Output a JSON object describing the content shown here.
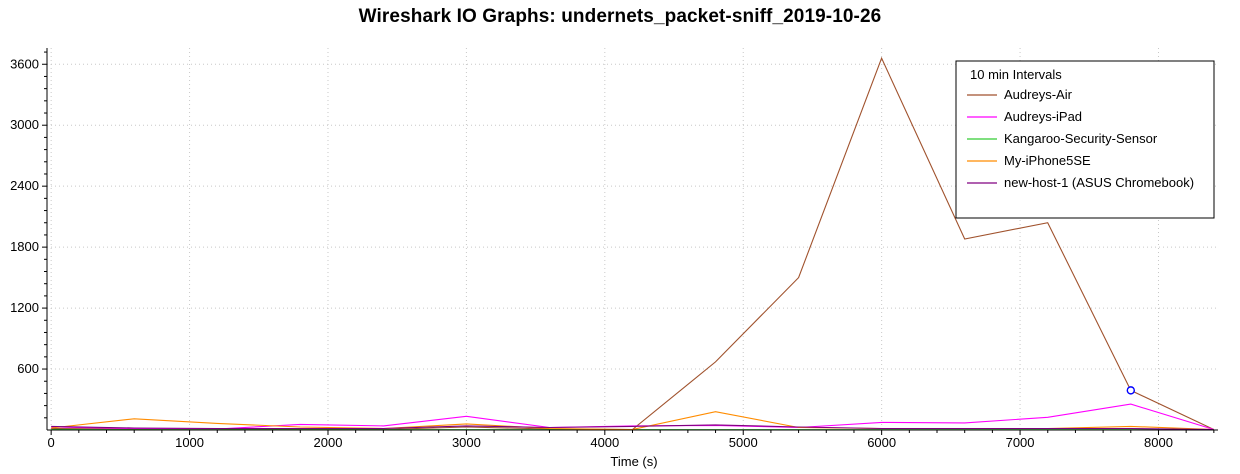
{
  "chart_data": {
    "type": "line",
    "title": "Wireshark IO Graphs: undernets_packet-sniff_2019-10-26",
    "xlabel": "Time (s)",
    "ylabel": "",
    "xlim": [
      -30,
      8430
    ],
    "ylim": [
      0,
      3760
    ],
    "xticks": [
      0,
      1000,
      2000,
      3000,
      4000,
      5000,
      6000,
      7000,
      8000
    ],
    "yticks": [
      600,
      1200,
      1800,
      2400,
      3000,
      3600
    ],
    "grid": true,
    "legend": {
      "title": "10 min Intervals",
      "placement": "top-right"
    },
    "x": [
      0,
      600,
      1200,
      1800,
      2400,
      3000,
      3600,
      4200,
      4800,
      5400,
      6000,
      6600,
      7200,
      7800,
      8400
    ],
    "series": [
      {
        "name": "Audreys-Air",
        "color": "#a0522d",
        "values": [
          15,
          10,
          8,
          10,
          5,
          30,
          10,
          5,
          670,
          1500,
          3660,
          1880,
          2040,
          390,
          5
        ]
      },
      {
        "name": "Audreys-iPad",
        "color": "#ff00ff",
        "values": [
          30,
          15,
          10,
          55,
          40,
          135,
          25,
          40,
          45,
          25,
          75,
          70,
          125,
          255,
          5
        ]
      },
      {
        "name": "Kangaroo-Security-Sensor",
        "color": "#33cc33",
        "values": [
          5,
          3,
          3,
          3,
          3,
          3,
          3,
          3,
          3,
          3,
          3,
          3,
          3,
          3,
          3
        ]
      },
      {
        "name": "My-iPhone5SE",
        "color": "#ff8c00",
        "values": [
          20,
          110,
          65,
          30,
          15,
          60,
          15,
          5,
          180,
          25,
          15,
          15,
          15,
          35,
          5
        ]
      },
      {
        "name": "new-host-1 (ASUS Chromebook)",
        "color": "#800080",
        "values": [
          35,
          20,
          15,
          15,
          15,
          40,
          25,
          35,
          50,
          30,
          15,
          15,
          15,
          15,
          5
        ]
      }
    ],
    "marker": {
      "series": "Audreys-Air",
      "x": 7800,
      "y": 390,
      "color": "#0000ff"
    }
  }
}
